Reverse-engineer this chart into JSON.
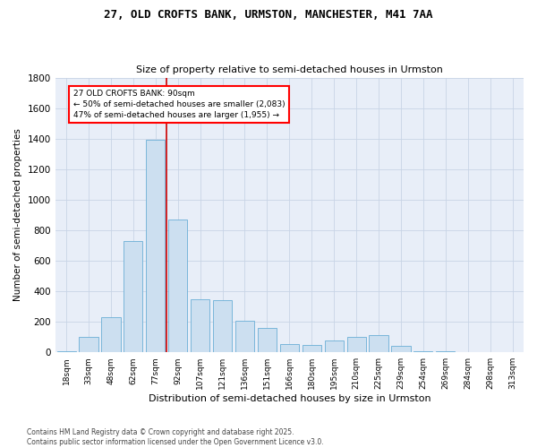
{
  "title": "27, OLD CROFTS BANK, URMSTON, MANCHESTER, M41 7AA",
  "subtitle": "Size of property relative to semi-detached houses in Urmston",
  "xlabel": "Distribution of semi-detached houses by size in Urmston",
  "ylabel": "Number of semi-detached properties",
  "categories": [
    "18sqm",
    "33sqm",
    "48sqm",
    "62sqm",
    "77sqm",
    "92sqm",
    "107sqm",
    "121sqm",
    "136sqm",
    "151sqm",
    "166sqm",
    "180sqm",
    "195sqm",
    "210sqm",
    "225sqm",
    "239sqm",
    "254sqm",
    "269sqm",
    "284sqm",
    "298sqm",
    "313sqm"
  ],
  "values": [
    10,
    100,
    230,
    730,
    1390,
    870,
    350,
    340,
    205,
    160,
    55,
    50,
    80,
    100,
    110,
    40,
    10,
    5,
    3,
    2,
    2
  ],
  "bar_color": "#ccdff0",
  "bar_edge_color": "#6aaed6",
  "vline_color": "#cc0000",
  "grid_color": "#c8d4e6",
  "bg_color": "#e8eef8",
  "ylim": [
    0,
    1800
  ],
  "yticks": [
    0,
    200,
    400,
    600,
    800,
    1000,
    1200,
    1400,
    1600,
    1800
  ],
  "property_size": "90sqm",
  "pct_smaller": "50%",
  "n_smaller": "2,083",
  "pct_larger": "47%",
  "n_larger": "1,955",
  "footer1": "Contains HM Land Registry data © Crown copyright and database right 2025.",
  "footer2": "Contains public sector information licensed under the Open Government Licence v3.0."
}
